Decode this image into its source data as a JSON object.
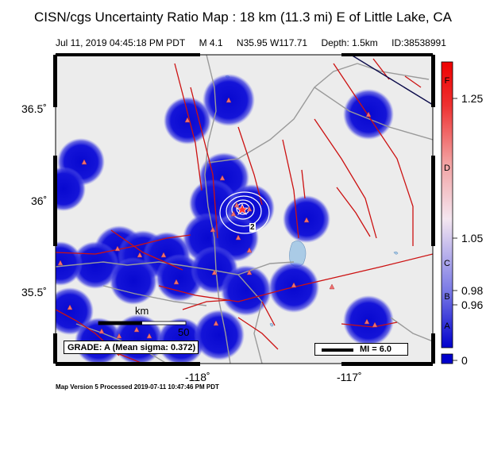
{
  "title": "CISN/cgs Uncertainty Ratio Map : 18 km (11.3 mi) E of Little Lake, CA",
  "event": {
    "datetime": "Jul 11, 2019 04:45:18 PM PDT",
    "magnitude": "M 4.1",
    "location": "N35.95 W117.71",
    "depth": "Depth: 1.5km",
    "id": "ID:38538991"
  },
  "axes": {
    "y_ticks": [
      "36.5˚",
      "36˚",
      "35.5˚"
    ],
    "x_ticks": [
      "-118˚",
      "-117˚"
    ]
  },
  "colorbar": {
    "ticks": [
      "1.25",
      "1.05",
      "0.98",
      "0.96",
      "0"
    ],
    "letters": [
      "F",
      "D",
      "C",
      "B",
      "A"
    ]
  },
  "scalebar": {
    "unit": "km",
    "value": "50"
  },
  "grade_text": "GRADE: A (Mean sigma: 0.372)",
  "mi_legend": "MI = 6.0",
  "contour_label": "2",
  "footer": "Map Version 5 Processed 2019-07-11 10:47:46 PM PDT",
  "colors": {
    "blob": "#1010d8",
    "fault": "#cc1111",
    "road": "#9a9a9a",
    "land": "#ececec",
    "water": "#aacbe6"
  }
}
